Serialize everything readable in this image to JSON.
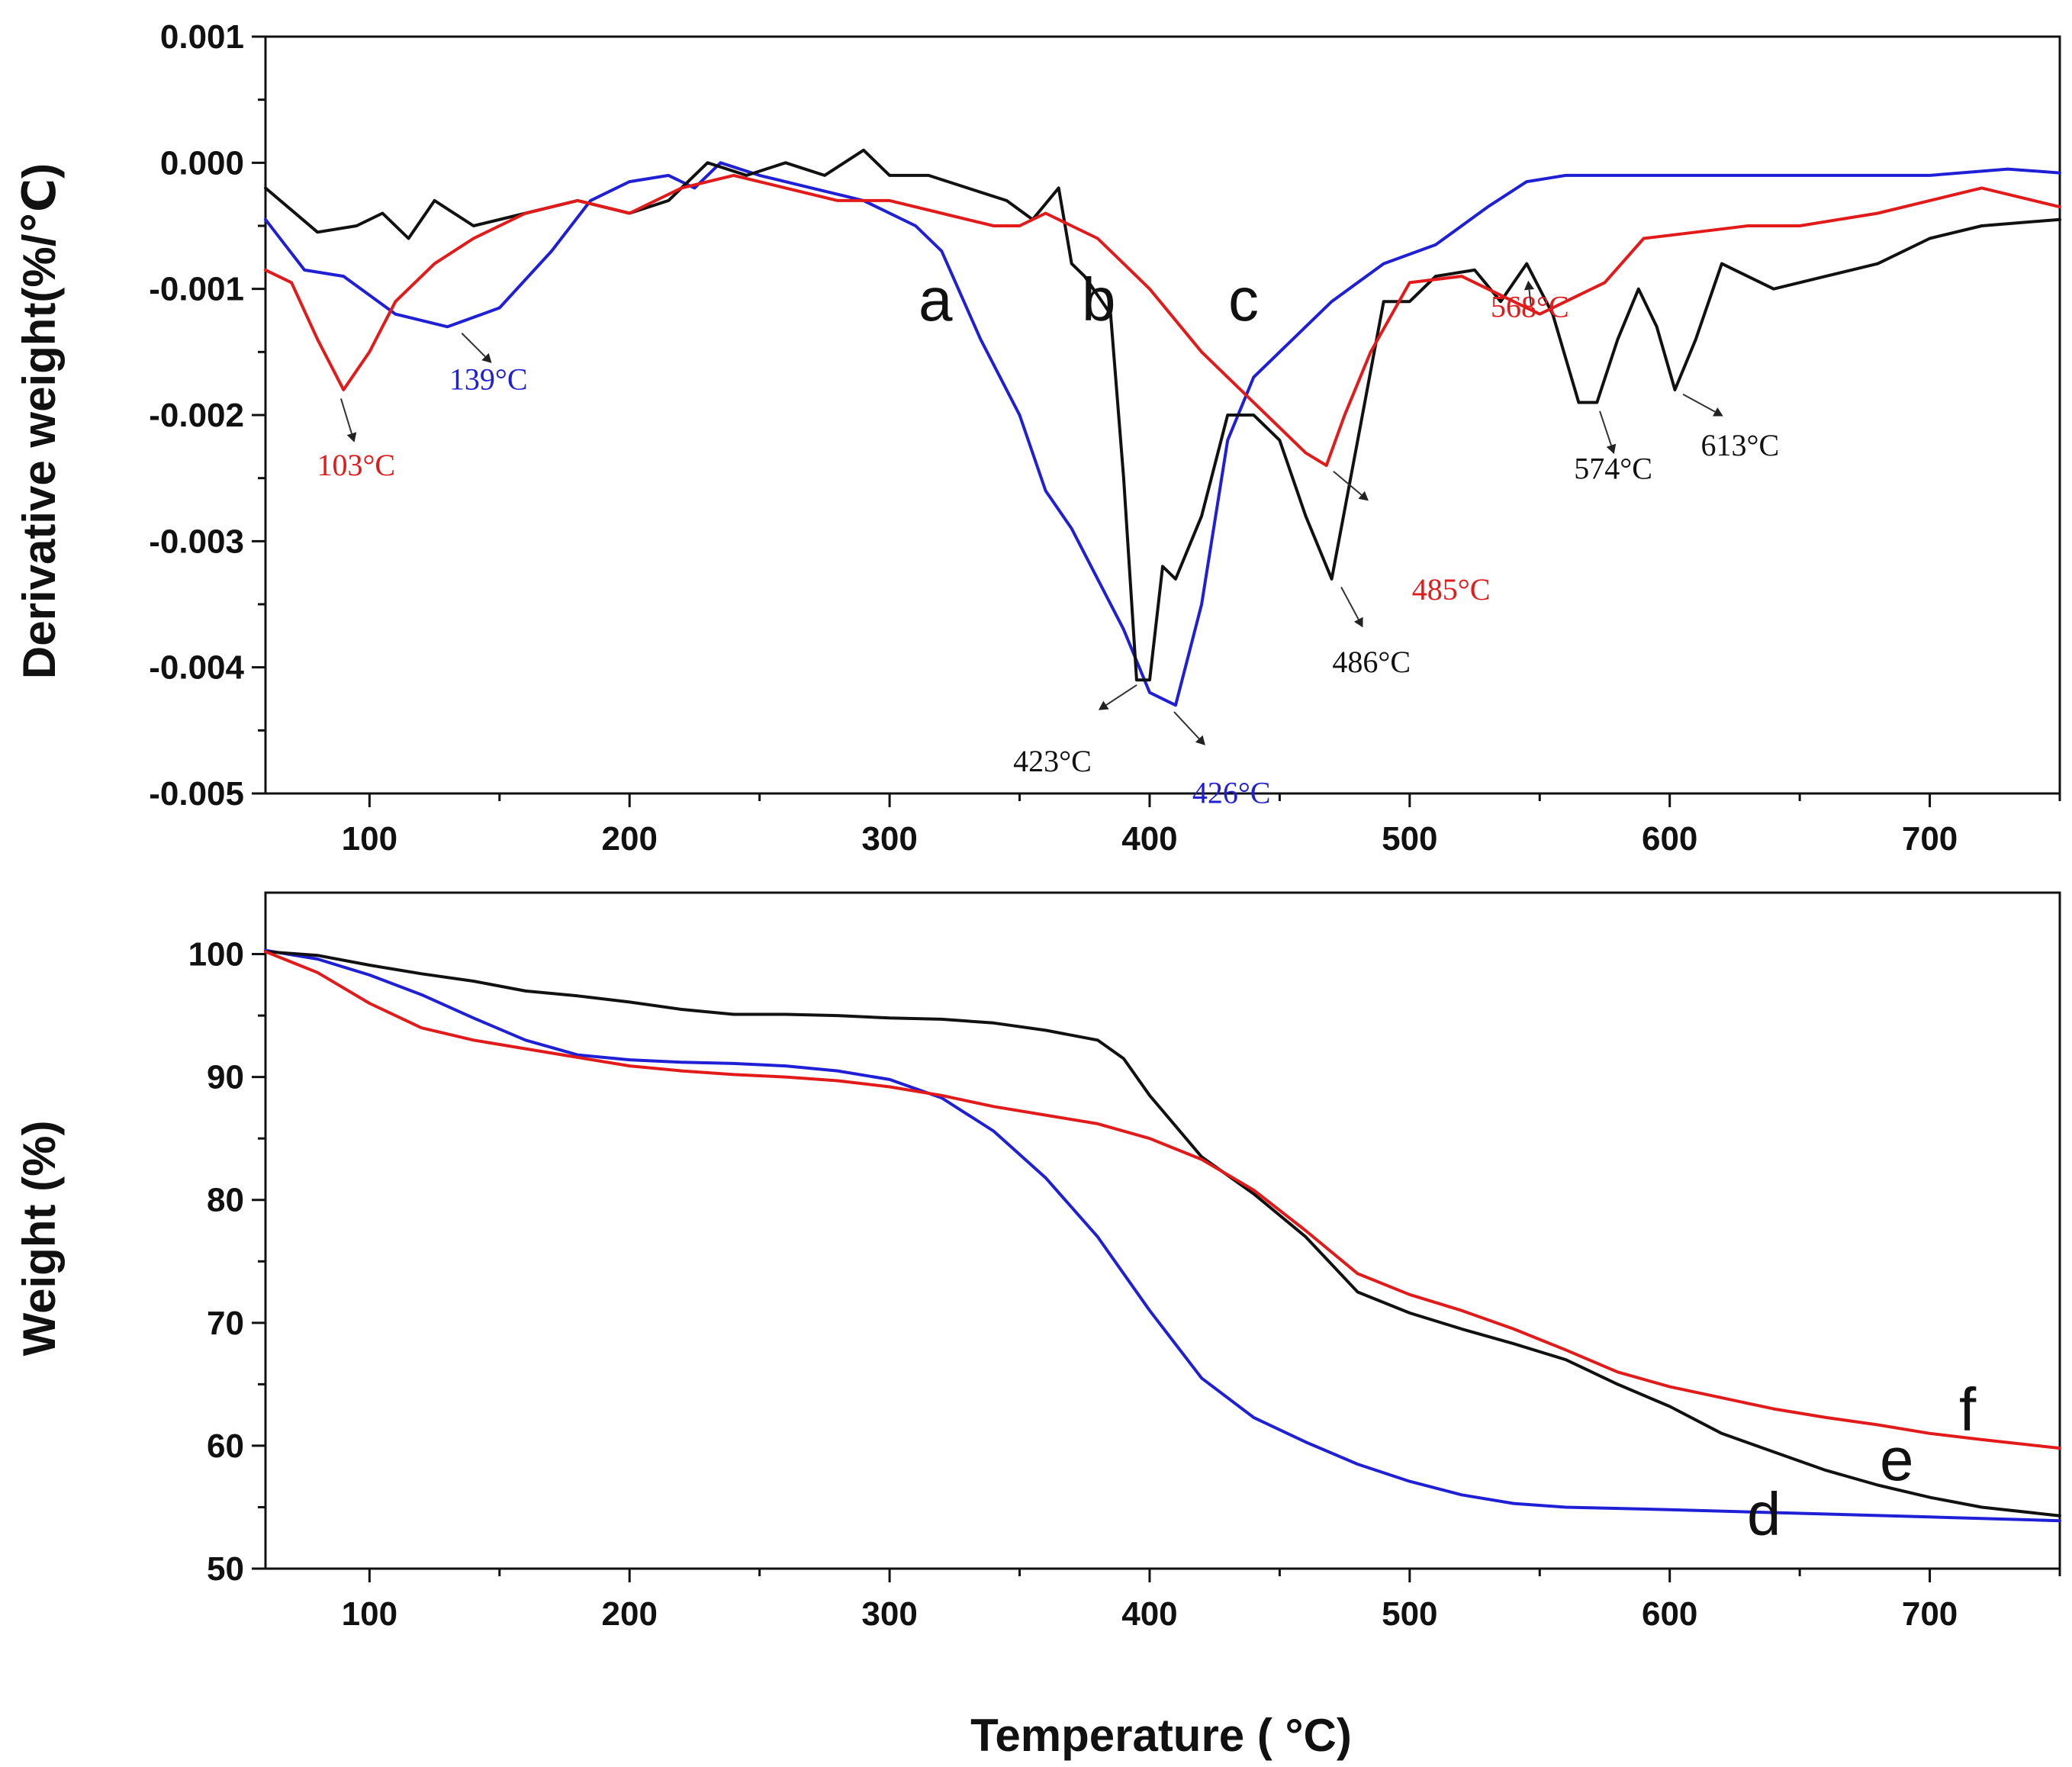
{
  "chart_data": [
    {
      "type": "line",
      "ylabel": "Derivative  weight(%/℃)",
      "xlabel": "",
      "xlim": [
        60,
        750
      ],
      "ylim": [
        -0.005,
        0.001
      ],
      "x_ticks": [
        "100",
        "200",
        "300",
        "400",
        "500",
        "600",
        "700"
      ],
      "y_ticks": [
        "0.001",
        "0.000",
        "-0.001",
        "-0.002",
        "-0.003",
        "-0.004",
        "-0.005"
      ],
      "series": [
        {
          "name": "a",
          "color": "#1f1fd6",
          "x": [
            60,
            75,
            90,
            110,
            130,
            150,
            170,
            185,
            200,
            215,
            225,
            235,
            250,
            270,
            290,
            310,
            320,
            335,
            350,
            360,
            370,
            380,
            390,
            400,
            410,
            420,
            430,
            440,
            450,
            470,
            490,
            510,
            530,
            545,
            560,
            600,
            650,
            700,
            730,
            750
          ],
          "y": [
            -0.00045,
            -0.00085,
            -0.0009,
            -0.0012,
            -0.0013,
            -0.00115,
            -0.0007,
            -0.0003,
            -0.00015,
            -0.0001,
            -0.0002,
            0.0,
            -0.0001,
            -0.0002,
            -0.0003,
            -0.0005,
            -0.0007,
            -0.0014,
            -0.002,
            -0.0026,
            -0.0029,
            -0.0033,
            -0.0037,
            -0.0042,
            -0.0043,
            -0.0035,
            -0.0022,
            -0.0017,
            -0.0015,
            -0.0011,
            -0.0008,
            -0.00065,
            -0.00035,
            -0.00015,
            -0.0001,
            -0.0001,
            -0.0001,
            -0.0001,
            -5e-05,
            -8e-05
          ]
        },
        {
          "name": "b",
          "color": "#111111",
          "x": [
            60,
            80,
            95,
            105,
            115,
            125,
            140,
            160,
            180,
            200,
            215,
            230,
            245,
            260,
            275,
            290,
            300,
            315,
            330,
            345,
            355,
            365,
            370,
            375,
            385,
            390,
            395,
            400,
            405,
            410,
            420,
            430,
            440,
            450,
            460,
            470,
            480,
            490,
            500,
            510,
            525,
            535,
            545,
            555,
            565,
            572,
            580,
            588,
            595,
            602,
            610,
            620,
            640,
            660,
            680,
            700,
            720,
            750
          ],
          "y": [
            -0.0002,
            -0.00055,
            -0.0005,
            -0.0004,
            -0.0006,
            -0.0003,
            -0.0005,
            -0.0004,
            -0.0003,
            -0.0004,
            -0.0003,
            0.0,
            -0.0001,
            0.0,
            -0.0001,
            0.0001,
            -0.0001,
            -0.0001,
            -0.0002,
            -0.0003,
            -0.00045,
            -0.0002,
            -0.0008,
            -0.0009,
            -0.0012,
            -0.0025,
            -0.0041,
            -0.0041,
            -0.0032,
            -0.0033,
            -0.0028,
            -0.002,
            -0.002,
            -0.0022,
            -0.0028,
            -0.0033,
            -0.0022,
            -0.0011,
            -0.0011,
            -0.0009,
            -0.00085,
            -0.0011,
            -0.0008,
            -0.0012,
            -0.0019,
            -0.0019,
            -0.0014,
            -0.001,
            -0.0013,
            -0.0018,
            -0.0014,
            -0.0008,
            -0.001,
            -0.0009,
            -0.0008,
            -0.0006,
            -0.0005,
            -0.00045
          ]
        },
        {
          "name": "c",
          "color": "#e21a1a",
          "x": [
            60,
            70,
            80,
            90,
            100,
            110,
            125,
            140,
            160,
            180,
            200,
            220,
            240,
            260,
            280,
            300,
            320,
            340,
            350,
            360,
            370,
            380,
            390,
            400,
            420,
            440,
            460,
            468,
            475,
            485,
            500,
            520,
            540,
            550,
            560,
            575,
            590,
            610,
            630,
            650,
            680,
            700,
            720,
            750
          ],
          "y": [
            -0.00085,
            -0.00095,
            -0.0014,
            -0.0018,
            -0.0015,
            -0.0011,
            -0.0008,
            -0.0006,
            -0.0004,
            -0.0003,
            -0.0004,
            -0.0002,
            -0.0001,
            -0.0002,
            -0.0003,
            -0.0003,
            -0.0004,
            -0.0005,
            -0.0005,
            -0.0004,
            -0.0005,
            -0.0006,
            -0.0008,
            -0.001,
            -0.0015,
            -0.0019,
            -0.0023,
            -0.0024,
            -0.002,
            -0.0015,
            -0.00095,
            -0.0009,
            -0.0011,
            -0.0012,
            -0.0011,
            -0.00095,
            -0.0006,
            -0.00055,
            -0.0005,
            -0.0005,
            -0.0004,
            -0.0003,
            -0.0002,
            -0.00035
          ]
        }
      ],
      "curve_labels": [
        "a",
        "b",
        "c"
      ],
      "annotations": [
        {
          "text": "103°C",
          "color": "#e21a1a",
          "x": 88,
          "y": -0.0018
        },
        {
          "text": "139°C",
          "color": "#1f1fd6",
          "x": 133,
          "y": -0.0013
        },
        {
          "text": "423°C",
          "color": "#111111",
          "x": 398,
          "y": -0.0041
        },
        {
          "text": "426°C",
          "color": "#1f1fd6",
          "x": 407,
          "y": -0.0043
        },
        {
          "text": "486°C",
          "color": "#111111",
          "x": 472,
          "y": -0.0033
        },
        {
          "text": "485°C",
          "color": "#e21a1a",
          "x": 468,
          "y": -0.0024
        },
        {
          "text": "568°C",
          "color": "#e21a1a",
          "x": 547,
          "y": -0.0012
        },
        {
          "text": "574°C",
          "color": "#111111",
          "x": 572,
          "y": -0.0019
        },
        {
          "text": "613°C",
          "color": "#111111",
          "x": 602,
          "y": -0.0018
        }
      ]
    },
    {
      "type": "line",
      "ylabel": "Weight (%)",
      "xlabel": "Temperature ( °C)",
      "xlim": [
        60,
        750
      ],
      "ylim": [
        50,
        105
      ],
      "x_ticks": [
        "100",
        "200",
        "300",
        "400",
        "500",
        "600",
        "700"
      ],
      "y_ticks": [
        "100",
        "90",
        "80",
        "70",
        "60",
        "50"
      ],
      "series": [
        {
          "name": "d",
          "color": "#1f1fd6",
          "x": [
            60,
            80,
            100,
            120,
            140,
            160,
            180,
            200,
            220,
            240,
            260,
            280,
            300,
            320,
            340,
            360,
            380,
            400,
            420,
            440,
            460,
            480,
            500,
            520,
            540,
            560,
            600,
            650,
            700,
            750
          ],
          "y": [
            100.3,
            99.6,
            98.3,
            96.7,
            94.8,
            93.0,
            91.8,
            91.4,
            91.2,
            91.1,
            90.9,
            90.5,
            89.8,
            88.3,
            85.6,
            81.8,
            77.0,
            71.0,
            65.5,
            62.3,
            60.3,
            58.5,
            57.1,
            56.0,
            55.3,
            55.0,
            54.8,
            54.5,
            54.2,
            53.9
          ]
        },
        {
          "name": "e",
          "color": "#111111",
          "x": [
            60,
            80,
            100,
            120,
            140,
            160,
            180,
            200,
            220,
            240,
            260,
            280,
            300,
            320,
            340,
            360,
            380,
            390,
            400,
            420,
            440,
            460,
            480,
            500,
            520,
            540,
            560,
            580,
            600,
            620,
            640,
            660,
            680,
            700,
            720,
            750
          ],
          "y": [
            100.2,
            99.9,
            99.1,
            98.4,
            97.8,
            97.0,
            96.6,
            96.1,
            95.5,
            95.1,
            95.1,
            95.0,
            94.8,
            94.7,
            94.4,
            93.8,
            93.0,
            91.5,
            88.5,
            83.5,
            80.5,
            77.0,
            72.5,
            70.8,
            69.5,
            68.3,
            67.0,
            65.0,
            63.2,
            61.0,
            59.5,
            58.0,
            56.8,
            55.8,
            55.0,
            54.3
          ]
        },
        {
          "name": "f",
          "color": "#e21a1a",
          "x": [
            60,
            80,
            100,
            120,
            140,
            160,
            180,
            200,
            220,
            240,
            260,
            280,
            300,
            320,
            340,
            360,
            380,
            400,
            420,
            440,
            460,
            480,
            500,
            520,
            540,
            560,
            580,
            600,
            620,
            640,
            660,
            680,
            700,
            720,
            750
          ],
          "y": [
            100.2,
            98.5,
            96.0,
            94.0,
            93.0,
            92.3,
            91.6,
            90.9,
            90.5,
            90.2,
            90.0,
            89.7,
            89.2,
            88.5,
            87.6,
            86.9,
            86.2,
            85.0,
            83.3,
            80.8,
            77.5,
            74.0,
            72.3,
            71.0,
            69.5,
            67.8,
            66.0,
            64.8,
            63.9,
            63.0,
            62.3,
            61.7,
            61.0,
            60.5,
            59.8
          ]
        }
      ],
      "curve_labels": [
        "d",
        "e",
        "f"
      ],
      "annotations": []
    }
  ]
}
